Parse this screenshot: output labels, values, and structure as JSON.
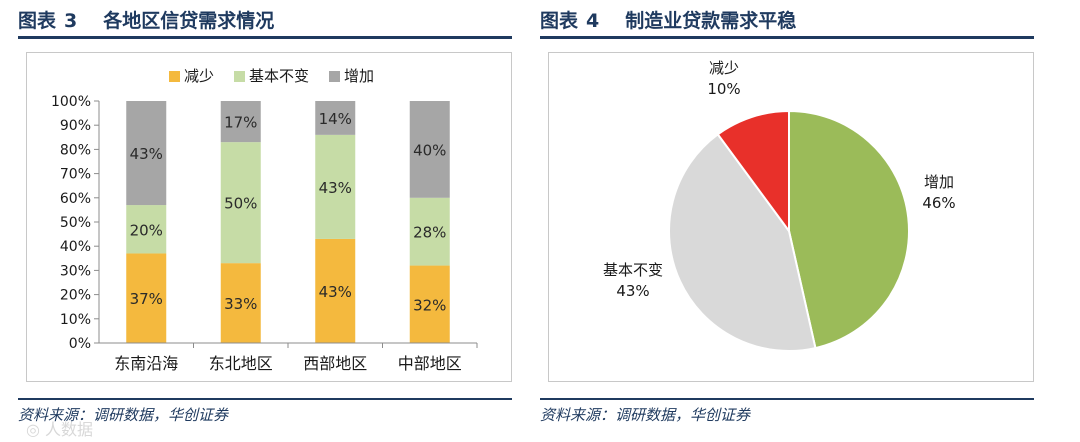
{
  "left_figure": {
    "label": "图表",
    "number": "3",
    "title": "各地区信贷需求情况",
    "source": "资料来源：调研数据，华创证券"
  },
  "right_figure": {
    "label": "图表",
    "number": "4",
    "title": "制造业贷款需求平稳",
    "source": "资料来源：调研数据，华创证券"
  },
  "watermark": "◎ 人数据",
  "chart_data": [
    {
      "type": "bar",
      "stacked": true,
      "categories": [
        "东南沿海",
        "东北地区",
        "西部地区",
        "中部地区"
      ],
      "series": [
        {
          "name": "减少",
          "color": "#f4b93e",
          "values": [
            37,
            33,
            43,
            32
          ],
          "labels": [
            "37%",
            "33%",
            "43%",
            "32%"
          ]
        },
        {
          "name": "基本不变",
          "color": "#c6dca6",
          "values": [
            20,
            50,
            43,
            28
          ],
          "labels": [
            "20%",
            "50%",
            "43%",
            "28%"
          ]
        },
        {
          "name": "增加",
          "color": "#a6a6a6",
          "values": [
            43,
            17,
            14,
            40
          ],
          "labels": [
            "43%",
            "17%",
            "14%",
            "40%"
          ]
        }
      ],
      "ylim": [
        0,
        100
      ],
      "yticks": [
        "0%",
        "10%",
        "20%",
        "30%",
        "40%",
        "50%",
        "60%",
        "70%",
        "80%",
        "90%",
        "100%"
      ],
      "legend_position": "top"
    },
    {
      "type": "pie",
      "slices": [
        {
          "name": "增加",
          "value": 46,
          "label": "46%",
          "color": "#9bbb59"
        },
        {
          "name": "基本不变",
          "value": 43,
          "label": "43%",
          "color": "#d9d9d9"
        },
        {
          "name": "减少",
          "value": 10,
          "label": "10%",
          "color": "#e8302a"
        }
      ]
    }
  ]
}
